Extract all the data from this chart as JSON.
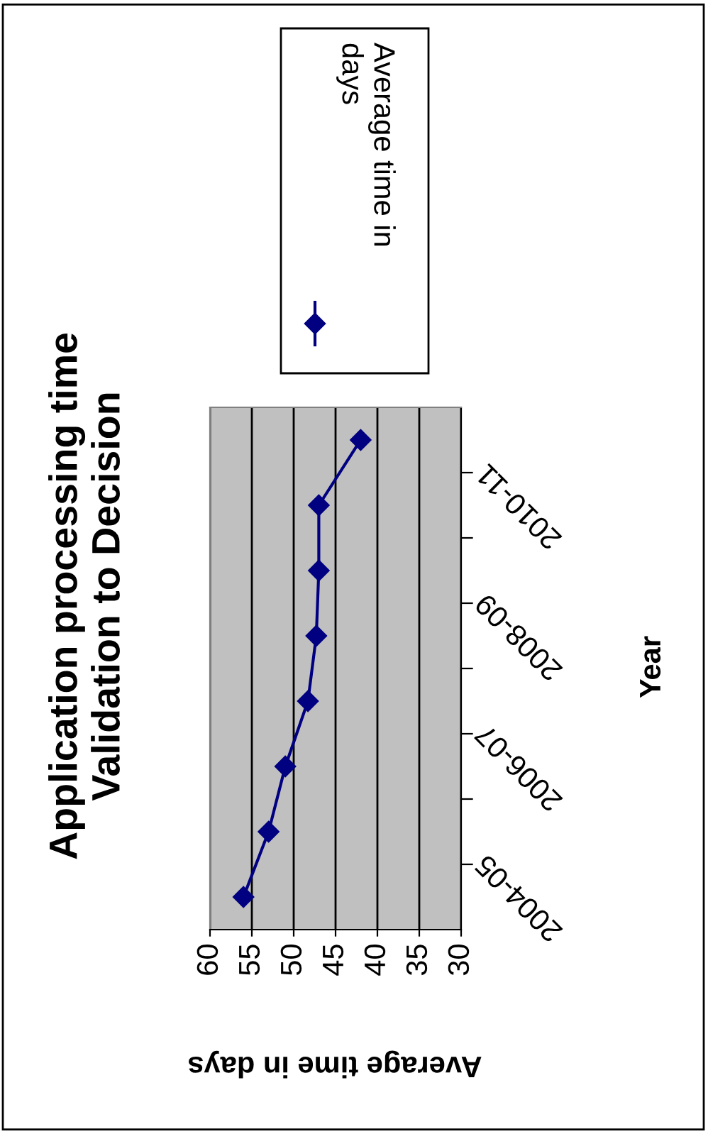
{
  "chart_data": {
    "type": "line",
    "orientation": "horizontal",
    "title": "Application processing time\nValidation to Decision",
    "ylabel": "Year",
    "xlabel": "Average time in days",
    "categories": [
      null,
      "2010-11",
      null,
      "2008-09",
      null,
      "2006-07",
      null,
      "2004-05"
    ],
    "series": [
      {
        "name": "Average time in\ndays",
        "color": "#000080",
        "values": [
          42,
          47,
          47,
          47.3,
          48.3,
          51,
          53,
          56
        ]
      }
    ],
    "xlim": [
      60,
      30
    ],
    "xticks": [
      60,
      55,
      50,
      45,
      40,
      35,
      30
    ],
    "grid": "x",
    "legend": "top right",
    "marker": "diamond",
    "line_style": "solid"
  }
}
